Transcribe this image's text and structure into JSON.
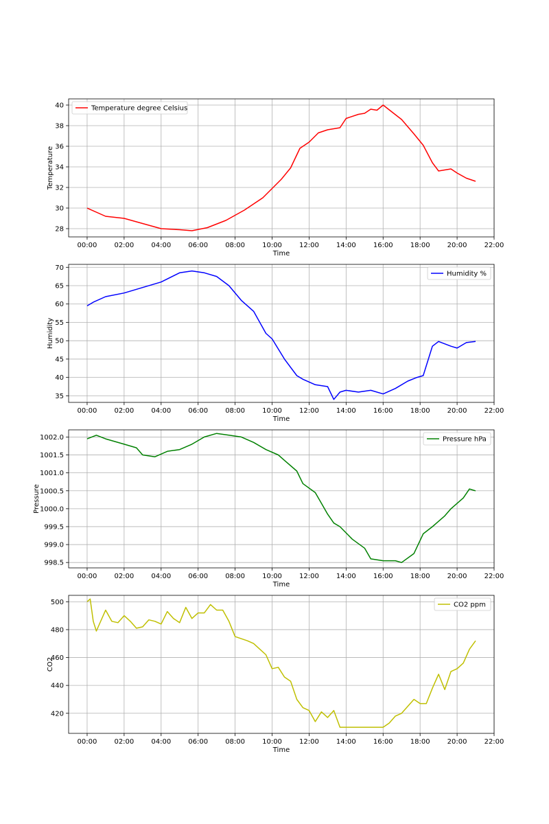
{
  "chart_data": [
    {
      "type": "line",
      "xlabel": "Time",
      "ylabel": "Temperature",
      "xlim": [
        "-1:00",
        "22:00"
      ],
      "ylim": [
        27.2,
        40.6
      ],
      "yticks": [
        28,
        30,
        32,
        34,
        36,
        38,
        40
      ],
      "ytick_labels": [
        "28",
        "30",
        "32",
        "34",
        "36",
        "38",
        "40"
      ],
      "xticks": [
        "00:00",
        "02:00",
        "04:00",
        "06:00",
        "08:00",
        "10:00",
        "12:00",
        "14:00",
        "16:00",
        "18:00",
        "20:00",
        "22:00"
      ],
      "grid": true,
      "legend_position": "upper-left",
      "series": [
        {
          "name": "Temperature degree Celsius",
          "color": "#ff0000",
          "x": [
            "00:00",
            "01:00",
            "02:00",
            "03:00",
            "04:00",
            "05:00",
            "05:40",
            "06:30",
            "07:30",
            "08:30",
            "09:30",
            "10:30",
            "11:00",
            "11:30",
            "12:00",
            "12:30",
            "13:00",
            "13:40",
            "14:00",
            "14:40",
            "15:00",
            "15:20",
            "15:40",
            "16:00",
            "16:30",
            "17:00",
            "17:40",
            "18:10",
            "18:40",
            "19:00",
            "19:40",
            "20:00",
            "20:30",
            "21:00"
          ],
          "values": [
            30.0,
            29.2,
            29.0,
            28.5,
            28.0,
            27.9,
            27.8,
            28.1,
            28.8,
            29.8,
            31.0,
            32.8,
            33.9,
            35.8,
            36.4,
            37.3,
            37.6,
            37.8,
            38.7,
            39.1,
            39.2,
            39.6,
            39.5,
            40.0,
            39.3,
            38.6,
            37.2,
            36.1,
            34.4,
            33.6,
            33.8,
            33.4,
            32.9,
            32.6
          ]
        }
      ]
    },
    {
      "type": "line",
      "xlabel": "Time",
      "ylabel": "Humidity",
      "xlim": [
        "-1:00",
        "22:00"
      ],
      "ylim": [
        33.2,
        70.8
      ],
      "yticks": [
        35,
        40,
        45,
        50,
        55,
        60,
        65,
        70
      ],
      "ytick_labels": [
        "35",
        "40",
        "45",
        "50",
        "55",
        "60",
        "65",
        "70"
      ],
      "xticks": [
        "00:00",
        "02:00",
        "04:00",
        "06:00",
        "08:00",
        "10:00",
        "12:00",
        "14:00",
        "16:00",
        "18:00",
        "20:00",
        "22:00"
      ],
      "grid": true,
      "legend_position": "upper-right",
      "series": [
        {
          "name": "Humidity %",
          "color": "#0000ff",
          "x": [
            "00:00",
            "00:20",
            "01:00",
            "02:00",
            "03:00",
            "04:00",
            "05:00",
            "05:40",
            "06:20",
            "07:00",
            "07:40",
            "08:20",
            "09:00",
            "09:40",
            "10:00",
            "10:40",
            "11:20",
            "11:40",
            "12:20",
            "13:00",
            "13:20",
            "13:40",
            "14:00",
            "14:40",
            "15:20",
            "16:00",
            "16:40",
            "17:20",
            "17:50",
            "18:10",
            "18:40",
            "19:00",
            "19:40",
            "20:00",
            "20:30",
            "21:00"
          ],
          "values": [
            59.5,
            60.5,
            62.0,
            63.0,
            64.5,
            66.0,
            68.5,
            69.0,
            68.5,
            67.5,
            65.0,
            61.0,
            58.0,
            52.0,
            50.5,
            45.0,
            40.5,
            39.5,
            38.0,
            37.5,
            34.0,
            36.0,
            36.5,
            36.0,
            36.5,
            35.5,
            37.0,
            39.0,
            40.0,
            40.5,
            48.5,
            49.8,
            48.5,
            48.0,
            49.5,
            49.8
          ]
        }
      ]
    },
    {
      "type": "line",
      "xlabel": "Time",
      "ylabel": "Pressure",
      "xlim": [
        "-1:00",
        "22:00"
      ],
      "ylim": [
        998.35,
        1002.2
      ],
      "yticks": [
        998.5,
        999.0,
        999.5,
        1000.0,
        1000.5,
        1001.0,
        1001.5,
        1002.0
      ],
      "ytick_labels": [
        "998.5",
        "999.0",
        "999.5",
        "1000.0",
        "1000.5",
        "1001.0",
        "1001.5",
        "1002.0"
      ],
      "xticks": [
        "00:00",
        "02:00",
        "04:00",
        "06:00",
        "08:00",
        "10:00",
        "12:00",
        "14:00",
        "16:00",
        "18:00",
        "20:00",
        "22:00"
      ],
      "grid": true,
      "legend_position": "upper-right",
      "series": [
        {
          "name": "Pressure hPa",
          "color": "#008000",
          "x": [
            "00:00",
            "00:30",
            "01:00",
            "02:00",
            "02:40",
            "03:00",
            "03:40",
            "04:20",
            "05:00",
            "05:40",
            "06:20",
            "07:00",
            "07:40",
            "08:20",
            "09:00",
            "09:40",
            "10:20",
            "10:40",
            "11:20",
            "11:40",
            "12:20",
            "12:40",
            "13:00",
            "13:20",
            "13:40",
            "14:20",
            "15:00",
            "15:20",
            "16:00",
            "16:40",
            "17:00",
            "17:40",
            "18:10",
            "18:40",
            "19:20",
            "19:40",
            "20:20",
            "20:40",
            "21:00"
          ],
          "values": [
            1001.95,
            1002.05,
            1001.95,
            1001.8,
            1001.7,
            1001.5,
            1001.45,
            1001.6,
            1001.65,
            1001.8,
            1002.0,
            1002.1,
            1002.05,
            1002.0,
            1001.85,
            1001.65,
            1001.5,
            1001.35,
            1001.05,
            1000.7,
            1000.45,
            1000.15,
            999.85,
            999.6,
            999.5,
            999.15,
            998.9,
            998.6,
            998.55,
            998.55,
            998.5,
            998.75,
            999.3,
            999.5,
            999.8,
            1000.0,
            1000.3,
            1000.55,
            1000.5
          ]
        }
      ]
    },
    {
      "type": "line",
      "xlabel": "Time",
      "ylabel": "CO2",
      "xlim": [
        "-1:00",
        "22:00"
      ],
      "ylim": [
        405.6,
        504.6
      ],
      "yticks": [
        420,
        440,
        460,
        480,
        500
      ],
      "ytick_labels": [
        "420",
        "440",
        "460",
        "480",
        "500"
      ],
      "xticks": [
        "00:00",
        "02:00",
        "04:00",
        "06:00",
        "08:00",
        "10:00",
        "12:00",
        "14:00",
        "16:00",
        "18:00",
        "20:00",
        "22:00"
      ],
      "grid": true,
      "legend_position": "upper-right",
      "series": [
        {
          "name": "CO2 ppm",
          "color": "#bfbf00",
          "x": [
            "00:00",
            "00:10",
            "00:20",
            "00:30",
            "01:00",
            "01:20",
            "01:40",
            "02:00",
            "02:20",
            "02:40",
            "03:00",
            "03:20",
            "03:40",
            "04:00",
            "04:20",
            "04:40",
            "05:00",
            "05:20",
            "05:40",
            "06:00",
            "06:20",
            "06:40",
            "07:00",
            "07:20",
            "07:40",
            "08:00",
            "08:40",
            "09:00",
            "09:20",
            "09:40",
            "10:00",
            "10:20",
            "10:40",
            "11:00",
            "11:20",
            "11:40",
            "12:00",
            "12:20",
            "12:40",
            "13:00",
            "13:20",
            "13:40",
            "14:00",
            "15:00",
            "16:00",
            "16:20",
            "16:40",
            "17:00",
            "17:20",
            "17:40",
            "18:00",
            "18:20",
            "18:40",
            "19:00",
            "19:20",
            "19:40",
            "20:00",
            "20:20",
            "20:40",
            "21:00"
          ],
          "values": [
            500,
            502,
            486,
            479,
            494,
            486,
            485,
            490,
            486,
            481,
            482,
            487,
            486,
            484,
            493,
            488,
            485,
            496,
            488,
            492,
            492,
            498,
            494,
            494,
            486,
            475,
            472,
            470,
            466,
            462,
            452,
            453,
            446,
            443,
            430,
            424,
            422,
            414,
            421,
            417,
            422,
            410,
            410,
            410,
            410,
            413,
            418,
            420,
            425,
            430,
            427,
            427,
            438,
            448,
            437,
            450,
            452,
            456,
            466,
            472
          ]
        }
      ]
    }
  ]
}
